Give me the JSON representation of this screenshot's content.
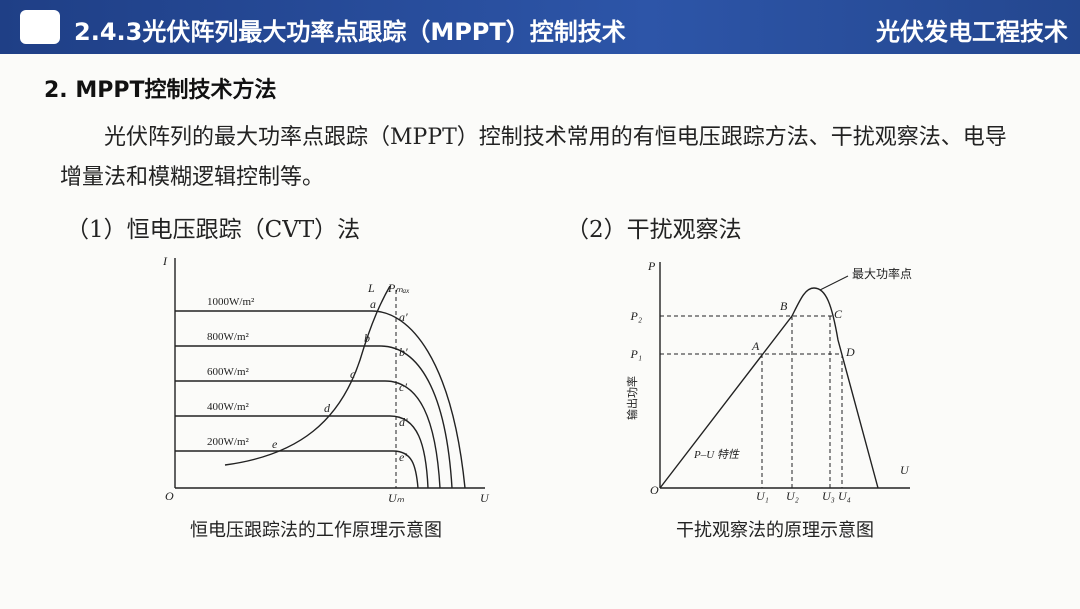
{
  "header": {
    "title": "2.4.3光伏阵列最大功率点跟踪（MPPT）控制技术",
    "course": "光伏发电工程技术"
  },
  "section": {
    "heading": "2. MPPT控制技术方法",
    "paragraph": "光伏阵列的最大功率点跟踪（MPPT）控制技术常用的有恒电压跟踪方法、干扰观察法、电导增量法和模糊逻辑控制等。"
  },
  "figures": [
    {
      "subtitle": "（1）恒电压跟踪（CVT）法",
      "caption": "恒电压跟踪法的工作原理示意图",
      "labels": {
        "y_axis": "I",
        "origin": "O",
        "x_axis": "U",
        "load_line": "L",
        "pmax_line": "Pₘₐₓ",
        "um": "Uₘ",
        "irradiance": [
          "1000W/m²",
          "800W/m²",
          "600W/m²",
          "400W/m²",
          "200W/m²"
        ],
        "points": [
          "a",
          "b",
          "c",
          "d",
          "e"
        ],
        "points_prime": [
          "a′",
          "b′",
          "c′",
          "d′",
          "e′"
        ]
      }
    },
    {
      "subtitle": "（2）干扰观察法",
      "caption": "干扰观察法的原理示意图",
      "labels": {
        "y_axis": "P",
        "origin": "O",
        "x_axis": "U",
        "p2": "P₂",
        "p1": "P₁",
        "mpp": "最大功率点",
        "output_power": "输出功率",
        "curve": "P–U 特性",
        "points": [
          "A",
          "B",
          "C",
          "D"
        ],
        "u_ticks": [
          "U₁",
          "U₂",
          "U₃",
          "U₄"
        ]
      }
    }
  ]
}
